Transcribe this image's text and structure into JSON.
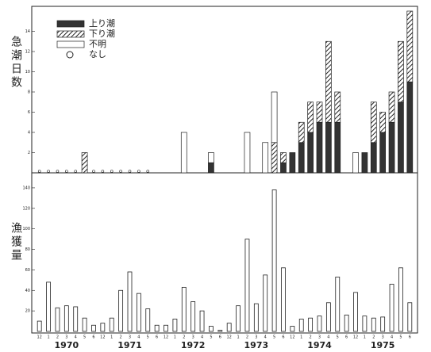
{
  "chart_data": [
    {
      "type": "stacked-bar",
      "y_label": "急潮日数",
      "ylim": [
        0,
        16
      ],
      "yticks": [
        2,
        4,
        6,
        8,
        10,
        12,
        14
      ],
      "series": [
        {
          "name": "上り潮",
          "color": "#333333",
          "pattern": "solid",
          "values": [
            0,
            0,
            0,
            0,
            0,
            0,
            0,
            0,
            0,
            0,
            0,
            0,
            0,
            0,
            0,
            0,
            0,
            0,
            0,
            1,
            0,
            0,
            0,
            0,
            0,
            0,
            0,
            1,
            2,
            3,
            4,
            5,
            5,
            5,
            0,
            0,
            2,
            3,
            4,
            5,
            7,
            9
          ]
        },
        {
          "name": "下り潮",
          "color": "#333333",
          "pattern": "hatch",
          "values": [
            0,
            0,
            0,
            0,
            0,
            2,
            0,
            0,
            0,
            0,
            0,
            0,
            0,
            0,
            0,
            0,
            0,
            0,
            0,
            0,
            0,
            0,
            0,
            0,
            0,
            0,
            3,
            1,
            0,
            2,
            3,
            2,
            8,
            3,
            0,
            0,
            0,
            4,
            2,
            3,
            6,
            7
          ]
        },
        {
          "name": "不明",
          "color": "#ffffff",
          "pattern": "open",
          "values": [
            0,
            0,
            0,
            0,
            0,
            0,
            0,
            0,
            0,
            0,
            0,
            0,
            0,
            0,
            0,
            0,
            4,
            0,
            0,
            1,
            0,
            0,
            0,
            4,
            0,
            3,
            5,
            0,
            0,
            0,
            0,
            0,
            0,
            0,
            0,
            2,
            0,
            0,
            0,
            0,
            0,
            0
          ]
        },
        {
          "name": "なし",
          "color": "#ffffff",
          "pattern": "circle",
          "values": [
            0,
            0,
            0,
            0,
            0,
            null,
            0,
            0,
            0,
            0,
            0,
            0,
            0,
            null,
            null,
            null,
            null,
            null,
            null,
            null,
            null,
            null,
            null,
            null,
            null,
            null,
            null,
            null,
            null,
            null,
            null,
            null,
            null,
            null,
            null,
            null,
            null,
            null,
            null,
            null,
            null,
            null
          ]
        }
      ]
    },
    {
      "type": "bar",
      "y_label": "漁獲量",
      "ylim": [
        0,
        150
      ],
      "yticks": [
        20,
        40,
        60,
        80,
        100,
        120,
        140
      ],
      "color": "#ffffff",
      "categories": [
        "12",
        "1",
        "2",
        "3",
        "4",
        "5",
        "6",
        "12",
        "1",
        "2",
        "3",
        "4",
        "5",
        "6",
        "12",
        "1",
        "2",
        "3",
        "4",
        "5",
        "6",
        "12",
        "1",
        "2",
        "3",
        "4",
        "5",
        "6",
        "12",
        "1",
        "2",
        "3",
        "4",
        "5",
        "6",
        "12",
        "1",
        "2",
        "3",
        "4",
        "5",
        "6"
      ],
      "year_labels": [
        "1970",
        "1971",
        "1972",
        "1973",
        "1974",
        "1975"
      ],
      "values": [
        10,
        48,
        23,
        25,
        24,
        13,
        6,
        8,
        13,
        40,
        58,
        37,
        22,
        6,
        6,
        12,
        43,
        29,
        20,
        5,
        1,
        8,
        25,
        90,
        27,
        55,
        138,
        62,
        5,
        12,
        13,
        15,
        28,
        53,
        16,
        38,
        15,
        13,
        14,
        46,
        62,
        28
      ]
    }
  ]
}
